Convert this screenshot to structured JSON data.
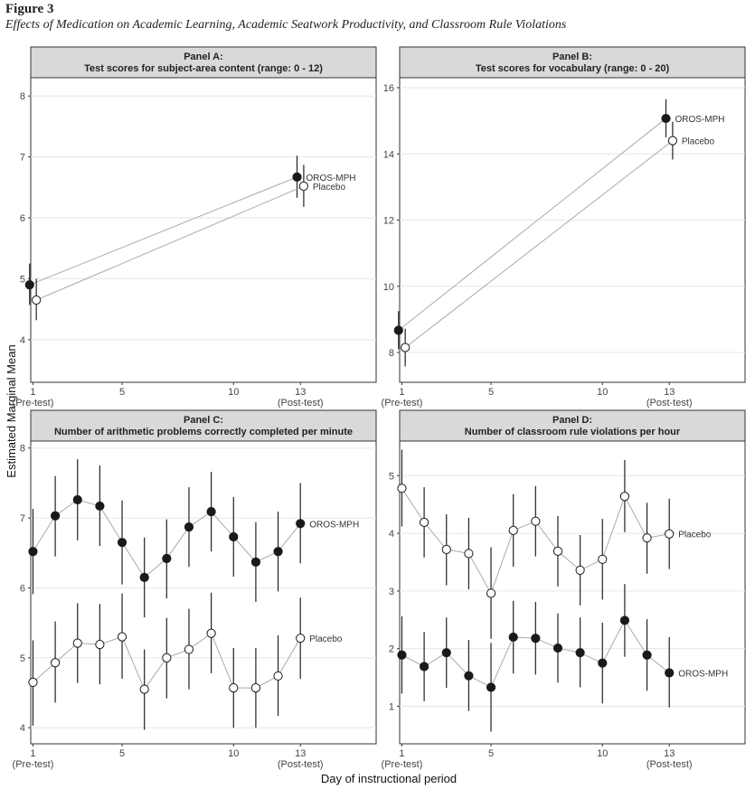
{
  "figure": {
    "label": "Figure 3",
    "title": "Effects of Medication on Academic Learning, Academic Seatwork Productivity, and Classroom Rule Violations",
    "ylabel": "Estimated Marginal Mean",
    "xlabel": "Day of instructional period"
  },
  "chart_data": [
    {
      "id": "A",
      "type": "line",
      "title": "Panel A:",
      "subtitle": "Test scores for subject-area content (range: 0 - 12)",
      "xticks": [
        1,
        5,
        10,
        13
      ],
      "xtick_sublabels": {
        "1": "(Pre-test)",
        "13": "(Post-test)"
      },
      "xlim": [
        0.9,
        16.4
      ],
      "ylim": [
        3.3,
        8.3
      ],
      "yticks": [
        4,
        5,
        6,
        7,
        8
      ],
      "label_series_text": true,
      "series": [
        {
          "name": "OROS-MPH",
          "marker": "filled",
          "points": [
            {
              "x": 1,
              "y": 4.9,
              "lo": 4.57,
              "hi": 5.25
            },
            {
              "x": 13,
              "y": 6.67,
              "lo": 6.33,
              "hi": 7.02
            }
          ]
        },
        {
          "name": "Placebo",
          "marker": "open",
          "points": [
            {
              "x": 1,
              "y": 4.65,
              "lo": 4.32,
              "hi": 5.0
            },
            {
              "x": 13,
              "y": 6.52,
              "lo": 6.18,
              "hi": 6.87
            }
          ]
        }
      ]
    },
    {
      "id": "B",
      "type": "line",
      "title": "Panel B:",
      "subtitle": "Test scores for vocabulary (range: 0 - 20)",
      "xticks": [
        1,
        5,
        10,
        13
      ],
      "xtick_sublabels": {
        "1": "(Pre-test)",
        "13": "(Post-test)"
      },
      "xlim": [
        0.9,
        16.4
      ],
      "ylim": [
        7.1,
        16.3
      ],
      "yticks": [
        8,
        10,
        12,
        14,
        16
      ],
      "label_series_text": true,
      "series": [
        {
          "name": "OROS-MPH",
          "marker": "filled",
          "points": [
            {
              "x": 1,
              "y": 8.67,
              "lo": 8.1,
              "hi": 9.25
            },
            {
              "x": 13,
              "y": 15.07,
              "lo": 14.5,
              "hi": 15.65
            }
          ]
        },
        {
          "name": "Placebo",
          "marker": "open",
          "points": [
            {
              "x": 1,
              "y": 8.15,
              "lo": 7.58,
              "hi": 8.72
            },
            {
              "x": 13,
              "y": 14.4,
              "lo": 13.83,
              "hi": 14.97
            }
          ]
        }
      ]
    },
    {
      "id": "C",
      "type": "line",
      "title": "Panel C:",
      "subtitle": "Number of arithmetic problems correctly completed per minute",
      "xticks": [
        1,
        5,
        10,
        13
      ],
      "xtick_sublabels": {
        "1": "(Pre-test)",
        "13": "(Post-test)"
      },
      "xlim": [
        0.9,
        16.4
      ],
      "ylim": [
        3.77,
        8.1
      ],
      "yticks": [
        4,
        5,
        6,
        7,
        8
      ],
      "label_series_text": true,
      "series": [
        {
          "name": "OROS-MPH",
          "marker": "filled",
          "points": [
            {
              "x": 1,
              "y": 6.52,
              "lo": 5.91,
              "hi": 7.13
            },
            {
              "x": 2,
              "y": 7.03,
              "lo": 6.45,
              "hi": 7.6
            },
            {
              "x": 3,
              "y": 7.26,
              "lo": 6.68,
              "hi": 7.84
            },
            {
              "x": 4,
              "y": 7.17,
              "lo": 6.6,
              "hi": 7.75
            },
            {
              "x": 5,
              "y": 6.65,
              "lo": 6.05,
              "hi": 7.25
            },
            {
              "x": 6,
              "y": 6.15,
              "lo": 5.58,
              "hi": 6.72
            },
            {
              "x": 7,
              "y": 6.42,
              "lo": 5.85,
              "hi": 6.98
            },
            {
              "x": 8,
              "y": 6.87,
              "lo": 6.3,
              "hi": 7.44
            },
            {
              "x": 9,
              "y": 7.09,
              "lo": 6.52,
              "hi": 7.66
            },
            {
              "x": 10,
              "y": 6.73,
              "lo": 6.16,
              "hi": 7.3
            },
            {
              "x": 11,
              "y": 6.37,
              "lo": 5.8,
              "hi": 6.94
            },
            {
              "x": 12,
              "y": 6.52,
              "lo": 5.95,
              "hi": 7.09
            },
            {
              "x": 13,
              "y": 6.92,
              "lo": 6.35,
              "hi": 7.5
            }
          ]
        },
        {
          "name": "Placebo",
          "marker": "open",
          "points": [
            {
              "x": 1,
              "y": 4.65,
              "lo": 4.03,
              "hi": 5.25
            },
            {
              "x": 2,
              "y": 4.93,
              "lo": 4.36,
              "hi": 5.52
            },
            {
              "x": 3,
              "y": 5.21,
              "lo": 4.64,
              "hi": 5.78
            },
            {
              "x": 4,
              "y": 5.19,
              "lo": 4.62,
              "hi": 5.77
            },
            {
              "x": 5,
              "y": 5.3,
              "lo": 4.7,
              "hi": 5.92
            },
            {
              "x": 6,
              "y": 4.55,
              "lo": 3.97,
              "hi": 5.12
            },
            {
              "x": 7,
              "y": 5.0,
              "lo": 4.42,
              "hi": 5.57
            },
            {
              "x": 8,
              "y": 5.12,
              "lo": 4.55,
              "hi": 5.7
            },
            {
              "x": 9,
              "y": 5.35,
              "lo": 4.78,
              "hi": 5.93
            },
            {
              "x": 10,
              "y": 4.57,
              "lo": 4.0,
              "hi": 5.14
            },
            {
              "x": 11,
              "y": 4.57,
              "lo": 4.0,
              "hi": 5.14
            },
            {
              "x": 12,
              "y": 4.74,
              "lo": 4.17,
              "hi": 5.32
            },
            {
              "x": 13,
              "y": 5.28,
              "lo": 4.7,
              "hi": 5.86
            }
          ]
        }
      ]
    },
    {
      "id": "D",
      "type": "line",
      "title": "Panel D:",
      "subtitle": "Number of classroom rule violations per hour",
      "xticks": [
        1,
        5,
        10,
        13
      ],
      "xtick_sublabels": {
        "1": "(Pre-test)",
        "13": "(Post-test)"
      },
      "xlim": [
        0.9,
        16.4
      ],
      "ylim": [
        0.35,
        5.6
      ],
      "yticks": [
        1,
        2,
        3,
        4,
        5
      ],
      "label_series_text": true,
      "series": [
        {
          "name": "OROS-MPH",
          "marker": "filled",
          "points": [
            {
              "x": 1,
              "y": 1.89,
              "lo": 1.22,
              "hi": 2.56
            },
            {
              "x": 2,
              "y": 1.69,
              "lo": 1.09,
              "hi": 2.29
            },
            {
              "x": 3,
              "y": 1.93,
              "lo": 1.32,
              "hi": 2.54
            },
            {
              "x": 4,
              "y": 1.53,
              "lo": 0.92,
              "hi": 2.15
            },
            {
              "x": 5,
              "y": 1.33,
              "lo": 0.56,
              "hi": 2.1
            },
            {
              "x": 6,
              "y": 2.2,
              "lo": 1.57,
              "hi": 2.83
            },
            {
              "x": 7,
              "y": 2.18,
              "lo": 1.55,
              "hi": 2.81
            },
            {
              "x": 8,
              "y": 2.01,
              "lo": 1.41,
              "hi": 2.61
            },
            {
              "x": 9,
              "y": 1.93,
              "lo": 1.33,
              "hi": 2.54
            },
            {
              "x": 10,
              "y": 1.75,
              "lo": 1.05,
              "hi": 2.45
            },
            {
              "x": 11,
              "y": 2.49,
              "lo": 1.86,
              "hi": 3.12
            },
            {
              "x": 12,
              "y": 1.89,
              "lo": 1.27,
              "hi": 2.51
            },
            {
              "x": 13,
              "y": 1.58,
              "lo": 0.98,
              "hi": 2.2
            }
          ]
        },
        {
          "name": "Placebo",
          "marker": "open",
          "points": [
            {
              "x": 1,
              "y": 4.78,
              "lo": 4.12,
              "hi": 5.45
            },
            {
              "x": 2,
              "y": 4.19,
              "lo": 3.58,
              "hi": 4.8
            },
            {
              "x": 3,
              "y": 3.72,
              "lo": 3.1,
              "hi": 4.33
            },
            {
              "x": 4,
              "y": 3.65,
              "lo": 3.03,
              "hi": 4.27
            },
            {
              "x": 5,
              "y": 2.96,
              "lo": 2.17,
              "hi": 3.76
            },
            {
              "x": 6,
              "y": 4.05,
              "lo": 3.42,
              "hi": 4.68
            },
            {
              "x": 7,
              "y": 4.21,
              "lo": 3.6,
              "hi": 4.82
            },
            {
              "x": 8,
              "y": 3.69,
              "lo": 3.08,
              "hi": 4.3
            },
            {
              "x": 9,
              "y": 3.36,
              "lo": 2.75,
              "hi": 3.97
            },
            {
              "x": 10,
              "y": 3.55,
              "lo": 2.85,
              "hi": 4.25
            },
            {
              "x": 11,
              "y": 4.64,
              "lo": 4.02,
              "hi": 5.27
            },
            {
              "x": 12,
              "y": 3.92,
              "lo": 3.3,
              "hi": 4.53
            },
            {
              "x": 13,
              "y": 3.99,
              "lo": 3.38,
              "hi": 4.6
            }
          ]
        }
      ]
    }
  ]
}
